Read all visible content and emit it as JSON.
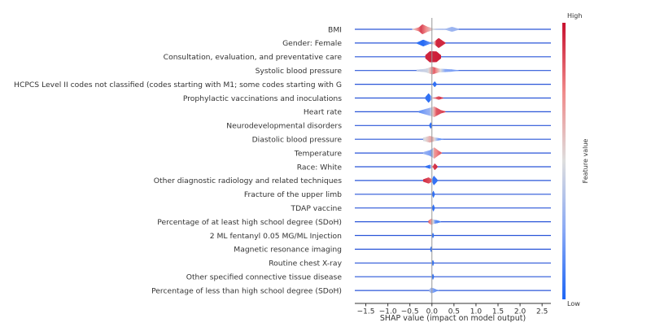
{
  "chart_data": {
    "type": "violin",
    "title": "",
    "xlabel": "SHAP value (impact on model output)",
    "xlim": [
      -1.75,
      2.7
    ],
    "xticks": [
      -1.5,
      -1.0,
      -0.5,
      0.0,
      0.5,
      1.0,
      1.5,
      2.0,
      2.5
    ],
    "xtick_labels": [
      "−1.5",
      "−1.0",
      "−0.5",
      "0.0",
      "0.5",
      "1.0",
      "1.5",
      "2.0",
      "2.5"
    ],
    "colorbar": {
      "label": "Feature value",
      "high": "High",
      "low": "Low"
    },
    "features": [
      {
        "name": "BMI",
        "density": [
          [
            -0.45,
            0.05
          ],
          [
            -0.3,
            0.35
          ],
          [
            -0.22,
            0.9
          ],
          [
            -0.1,
            0.45
          ],
          [
            0.05,
            0.1
          ],
          [
            0.3,
            0.08
          ],
          [
            0.45,
            0.45
          ],
          [
            0.6,
            0.1
          ]
        ],
        "colors": [
          [
            -0.45,
            0.5
          ],
          [
            -0.25,
            0.9
          ],
          [
            -0.1,
            0.7
          ],
          [
            0.1,
            0.4
          ],
          [
            0.45,
            0.3
          ],
          [
            0.6,
            0.3
          ]
        ]
      },
      {
        "name": "Gender: Female",
        "density": [
          [
            -0.35,
            0.08
          ],
          [
            -0.2,
            0.6
          ],
          [
            -0.05,
            0.15
          ],
          [
            0.05,
            0.25
          ],
          [
            0.15,
            0.9
          ],
          [
            0.3,
            0.08
          ]
        ],
        "colors": [
          [
            -0.35,
            0.05
          ],
          [
            -0.2,
            0.02
          ],
          [
            0.0,
            0.2
          ],
          [
            0.1,
            0.95
          ],
          [
            0.3,
            0.95
          ]
        ]
      },
      {
        "name": "Consultation, evaluation, and preventative care",
        "density": [
          [
            -0.15,
            0.3
          ],
          [
            -0.05,
            1.0
          ],
          [
            0.1,
            0.95
          ],
          [
            0.2,
            0.3
          ]
        ],
        "colors": [
          [
            -0.15,
            0.95
          ],
          [
            0.2,
            0.97
          ]
        ]
      },
      {
        "name": "Systolic blood pressure",
        "density": [
          [
            -0.35,
            0.15
          ],
          [
            -0.15,
            0.3
          ],
          [
            0.0,
            0.7
          ],
          [
            0.15,
            0.35
          ],
          [
            0.45,
            0.2
          ],
          [
            0.6,
            0.05
          ]
        ],
        "colors": [
          [
            -0.35,
            0.4
          ],
          [
            -0.1,
            0.45
          ],
          [
            0.05,
            0.85
          ],
          [
            0.3,
            0.25
          ],
          [
            0.6,
            0.2
          ]
        ]
      },
      {
        "name": "HCPCS Level II codes not classified (codes starting with M1; some codes starting with G",
        "density": [
          [
            0.02,
            0.1
          ],
          [
            0.06,
            0.5
          ],
          [
            0.1,
            0.1
          ]
        ],
        "colors": [
          [
            0.0,
            0.05
          ],
          [
            0.1,
            0.05
          ]
        ]
      },
      {
        "name": "Prophylactic vaccinations and inoculations",
        "density": [
          [
            -0.15,
            0.2
          ],
          [
            -0.08,
            0.85
          ],
          [
            0.0,
            0.15
          ],
          [
            0.05,
            0.05
          ],
          [
            0.15,
            0.3
          ],
          [
            0.25,
            0.05
          ]
        ],
        "colors": [
          [
            -0.15,
            0.05
          ],
          [
            -0.05,
            0.04
          ],
          [
            0.05,
            0.8
          ],
          [
            0.25,
            0.95
          ]
        ]
      },
      {
        "name": "Heart rate",
        "density": [
          [
            -0.3,
            0.15
          ],
          [
            -0.1,
            0.6
          ],
          [
            0.05,
            0.95
          ],
          [
            0.2,
            0.3
          ],
          [
            0.3,
            0.08
          ]
        ],
        "colors": [
          [
            -0.3,
            0.15
          ],
          [
            -0.05,
            0.3
          ],
          [
            0.1,
            0.85
          ],
          [
            0.3,
            0.9
          ]
        ]
      },
      {
        "name": "Neurodevelopmental disorders",
        "density": [
          [
            -0.06,
            0.1
          ],
          [
            -0.03,
            0.55
          ],
          [
            0.0,
            0.1
          ]
        ],
        "colors": [
          [
            -0.06,
            0.05
          ],
          [
            0.0,
            0.05
          ]
        ]
      },
      {
        "name": "Diastolic blood pressure",
        "density": [
          [
            -0.2,
            0.3
          ],
          [
            -0.05,
            0.6
          ],
          [
            0.05,
            0.35
          ],
          [
            0.15,
            0.2
          ],
          [
            0.25,
            0.05
          ]
        ],
        "colors": [
          [
            -0.2,
            0.45
          ],
          [
            0.0,
            0.7
          ],
          [
            0.15,
            0.2
          ],
          [
            0.25,
            0.15
          ]
        ]
      },
      {
        "name": "Temperature",
        "density": [
          [
            -0.2,
            0.15
          ],
          [
            -0.05,
            0.5
          ],
          [
            0.05,
            1.0
          ],
          [
            0.15,
            0.4
          ],
          [
            0.22,
            0.05
          ]
        ],
        "colors": [
          [
            -0.2,
            0.3
          ],
          [
            0.0,
            0.2
          ],
          [
            0.05,
            0.7
          ],
          [
            0.2,
            0.85
          ]
        ]
      },
      {
        "name": "Race: White",
        "density": [
          [
            -0.15,
            0.1
          ],
          [
            -0.05,
            0.35
          ],
          [
            0.02,
            0.1
          ],
          [
            0.06,
            0.6
          ],
          [
            0.12,
            0.1
          ]
        ],
        "colors": [
          [
            -0.15,
            0.05
          ],
          [
            -0.05,
            0.05
          ],
          [
            0.03,
            0.9
          ],
          [
            0.12,
            0.95
          ]
        ]
      },
      {
        "name": "Other diagnostic radiology and related techniques",
        "density": [
          [
            -0.2,
            0.2
          ],
          [
            -0.08,
            0.55
          ],
          [
            0.0,
            0.2
          ],
          [
            0.04,
            0.85
          ],
          [
            0.12,
            0.15
          ]
        ],
        "colors": [
          [
            -0.2,
            0.95
          ],
          [
            -0.02,
            0.85
          ],
          [
            0.02,
            0.05
          ],
          [
            0.12,
            0.05
          ]
        ]
      },
      {
        "name": "Fracture of the upper limb",
        "density": [
          [
            0.0,
            0.05
          ],
          [
            0.03,
            0.6
          ],
          [
            0.06,
            0.05
          ]
        ],
        "colors": [
          [
            0.0,
            0.05
          ],
          [
            0.06,
            0.05
          ]
        ]
      },
      {
        "name": "TDAP vaccine",
        "density": [
          [
            0.0,
            0.05
          ],
          [
            0.03,
            0.6
          ],
          [
            0.06,
            0.05
          ]
        ],
        "colors": [
          [
            0.0,
            0.05
          ],
          [
            0.06,
            0.05
          ]
        ]
      },
      {
        "name": "Percentage of at least high school degree (SDoH)",
        "density": [
          [
            -0.08,
            0.2
          ],
          [
            -0.02,
            0.55
          ],
          [
            0.05,
            0.35
          ],
          [
            0.12,
            0.25
          ],
          [
            0.2,
            0.05
          ]
        ],
        "colors": [
          [
            -0.08,
            0.85
          ],
          [
            0.0,
            0.65
          ],
          [
            0.08,
            0.15
          ],
          [
            0.2,
            0.1
          ]
        ]
      },
      {
        "name": "2 ML fentanyl 0.05 MG/ML Injection",
        "density": [
          [
            0.0,
            0.05
          ],
          [
            0.02,
            0.45
          ],
          [
            0.04,
            0.05
          ]
        ],
        "colors": [
          [
            0.0,
            0.05
          ],
          [
            0.04,
            0.05
          ]
        ]
      },
      {
        "name": "Magnetic resonance imaging",
        "density": [
          [
            -0.04,
            0.05
          ],
          [
            -0.02,
            0.5
          ],
          [
            0.0,
            0.05
          ]
        ],
        "colors": [
          [
            -0.04,
            0.05
          ],
          [
            0.0,
            0.05
          ]
        ]
      },
      {
        "name": "Routine chest X-ray",
        "density": [
          [
            0.0,
            0.05
          ],
          [
            0.02,
            0.5
          ],
          [
            0.04,
            0.05
          ]
        ],
        "colors": [
          [
            0.0,
            0.05
          ],
          [
            0.04,
            0.05
          ]
        ]
      },
      {
        "name": "Other specified connective tissue disease",
        "density": [
          [
            0.0,
            0.05
          ],
          [
            0.02,
            0.5
          ],
          [
            0.04,
            0.05
          ]
        ],
        "colors": [
          [
            0.0,
            0.05
          ],
          [
            0.04,
            0.05
          ]
        ]
      },
      {
        "name": "Percentage of less than high school degree (SDoH)",
        "density": [
          [
            -0.06,
            0.2
          ],
          [
            -0.02,
            0.5
          ],
          [
            0.03,
            0.4
          ],
          [
            0.1,
            0.15
          ],
          [
            0.15,
            0.05
          ]
        ],
        "colors": [
          [
            -0.06,
            0.35
          ],
          [
            0.0,
            0.3
          ],
          [
            0.05,
            0.2
          ],
          [
            0.15,
            0.15
          ]
        ]
      }
    ]
  }
}
